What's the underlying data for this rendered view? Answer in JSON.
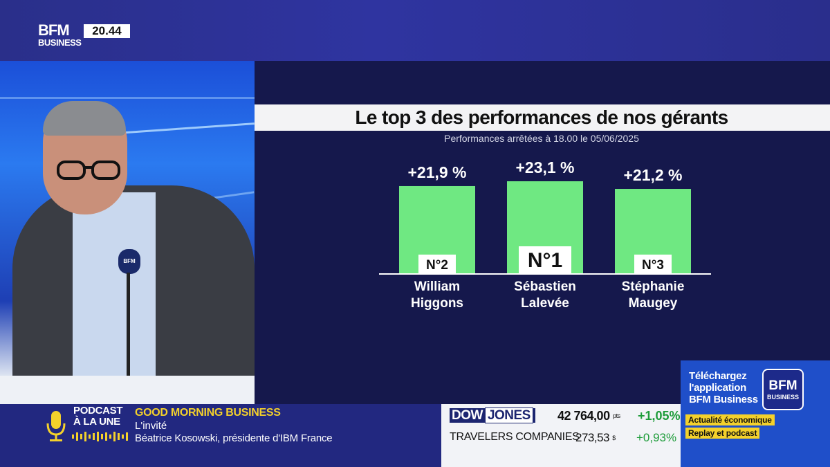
{
  "channel": {
    "logo_top": "BFM",
    "logo_bottom": "BUSINESS",
    "time": "20.44"
  },
  "graphic": {
    "title": "Le top 3 des performances de nos gérants",
    "subtitle": "Performances arrêtées à 18.00 le 05/06/2025"
  },
  "chart_data": {
    "type": "bar",
    "categories": [
      "William Higgons",
      "Sébastien Lalevée",
      "Stéphanie Maugey"
    ],
    "name_lines": [
      [
        "William",
        "Higgons"
      ],
      [
        "Sébastien",
        "Lalevée"
      ],
      [
        "Stéphanie",
        "Maugey"
      ]
    ],
    "values": [
      21.9,
      23.1,
      21.2
    ],
    "value_labels": [
      "+21,9 %",
      "+23,1 %",
      "+21,2 %"
    ],
    "ranks": [
      "N°2",
      "N°1",
      "N°3"
    ],
    "bar_color": "#6fe882",
    "title": "Le top 3 des performances de nos gérants",
    "subtitle": "Performances arrêtées à 18.00 le 05/06/2025"
  },
  "lower_third": {
    "podcast_line1": "PODCAST",
    "podcast_line2": "À LA UNE",
    "program": "GOOD MORNING BUSINESS",
    "line1": "L'invité",
    "line2": "Béatrice Kosowski, présidente d'IBM France"
  },
  "ticker": {
    "index_part1": "DOW",
    "index_part2": "JONES",
    "index_value": "42 764,00",
    "index_unit": "pts",
    "index_change": "+1,05%",
    "stock_name": "TRAVELERS COMPANIES",
    "stock_value": "273,53",
    "stock_unit": "$",
    "stock_change": "+0,93%",
    "positive_color": "#1e9c3a"
  },
  "promo": {
    "line1": "Téléchargez",
    "line2": "l'application",
    "line3": "BFM Business",
    "logo_top": "BFM",
    "logo_bottom": "BUSINESS",
    "tag1": "Actualité économique",
    "tag2": "Replay et podcast"
  }
}
